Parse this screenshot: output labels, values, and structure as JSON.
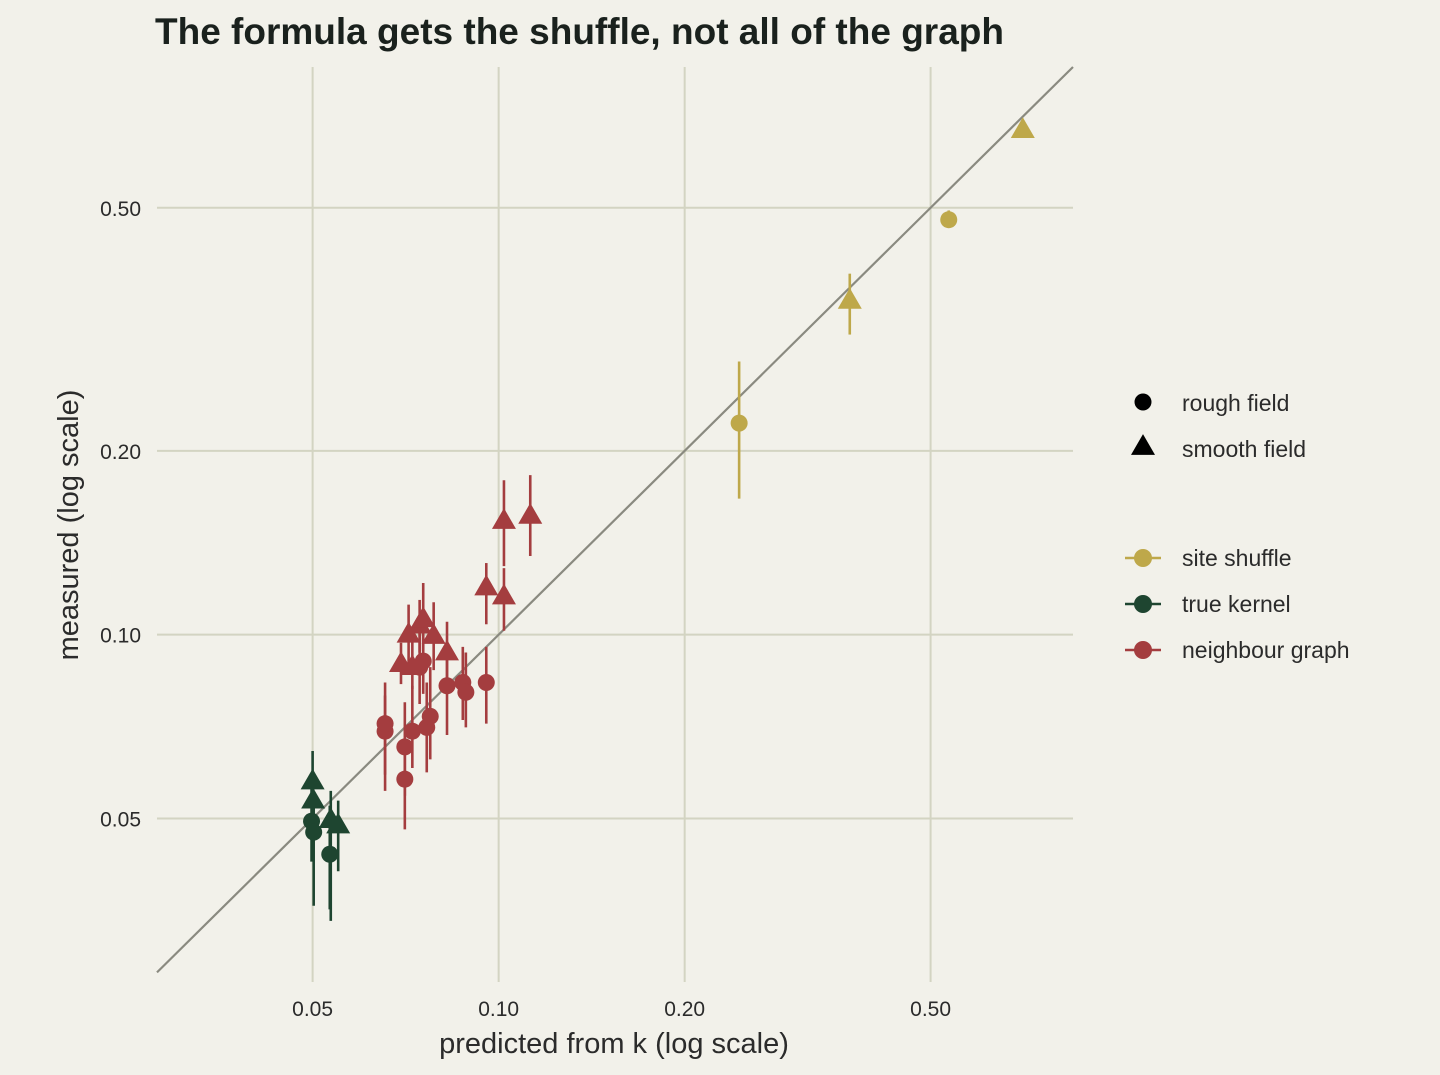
{
  "chart_data": {
    "type": "scatter",
    "title": "The formula gets the shuffle, not all of the graph",
    "xlabel": "predicted from k (log scale)",
    "ylabel": "measured (log scale)",
    "xscale": "log",
    "yscale": "log",
    "xlim": [
      0.028,
      0.85
    ],
    "ylim": [
      0.027,
      0.85
    ],
    "x_ticks": [
      0.05,
      0.1,
      0.2,
      0.5
    ],
    "x_tick_labels": [
      "0.05",
      "0.10",
      "0.20",
      "0.50"
    ],
    "y_ticks": [
      0.05,
      0.1,
      0.2,
      0.5
    ],
    "y_tick_labels": [
      "0.05",
      "0.10",
      "0.20",
      "0.50"
    ],
    "grid": true,
    "reference_line": "y = x",
    "legend_position": "right",
    "shape_legend": [
      {
        "label": "rough field",
        "shape": "circle"
      },
      {
        "label": "smooth field",
        "shape": "triangle"
      }
    ],
    "series": [
      {
        "name": "site shuffle",
        "color": "#bea84a",
        "points": [
          {
            "x": 0.245,
            "y": 0.222,
            "ylo": 0.167,
            "yhi": 0.28,
            "shape": "circle"
          },
          {
            "x": 0.535,
            "y": 0.478,
            "ylo": 0.465,
            "yhi": 0.495,
            "shape": "circle"
          },
          {
            "x": 0.37,
            "y": 0.352,
            "ylo": 0.31,
            "yhi": 0.39,
            "shape": "triangle"
          },
          {
            "x": 0.705,
            "y": 0.67,
            "ylo": 0.665,
            "yhi": 0.675,
            "shape": "triangle"
          }
        ]
      },
      {
        "name": "true kernel",
        "color": "#1e4530",
        "points": [
          {
            "x": 0.0498,
            "y": 0.0495,
            "ylo": 0.0425,
            "yhi": 0.0575,
            "shape": "circle"
          },
          {
            "x": 0.0502,
            "y": 0.0475,
            "ylo": 0.036,
            "yhi": 0.0545,
            "shape": "circle"
          },
          {
            "x": 0.0533,
            "y": 0.0437,
            "ylo": 0.0355,
            "yhi": 0.0525,
            "shape": "circle"
          },
          {
            "x": 0.05,
            "y": 0.0575,
            "ylo": 0.0525,
            "yhi": 0.0645,
            "shape": "triangle"
          },
          {
            "x": 0.0501,
            "y": 0.0535,
            "ylo": 0.0445,
            "yhi": 0.0585,
            "shape": "triangle"
          },
          {
            "x": 0.0535,
            "y": 0.0497,
            "ylo": 0.034,
            "yhi": 0.0555,
            "shape": "triangle"
          },
          {
            "x": 0.055,
            "y": 0.0487,
            "ylo": 0.041,
            "yhi": 0.0535,
            "shape": "triangle"
          }
        ]
      },
      {
        "name": "neighbour graph",
        "color": "#a43d3f",
        "points": [
          {
            "x": 0.0655,
            "y": 0.0695,
            "ylo": 0.0555,
            "yhi": 0.0795,
            "shape": "circle"
          },
          {
            "x": 0.0655,
            "y": 0.0715,
            "ylo": 0.059,
            "yhi": 0.0835,
            "shape": "circle"
          },
          {
            "x": 0.0705,
            "y": 0.0655,
            "ylo": 0.0545,
            "yhi": 0.0775,
            "shape": "circle"
          },
          {
            "x": 0.0725,
            "y": 0.0695,
            "ylo": 0.0605,
            "yhi": 0.0825,
            "shape": "circle"
          },
          {
            "x": 0.0705,
            "y": 0.058,
            "ylo": 0.048,
            "yhi": 0.0655,
            "shape": "circle"
          },
          {
            "x": 0.0765,
            "y": 0.0705,
            "ylo": 0.0595,
            "yhi": 0.0835,
            "shape": "circle"
          },
          {
            "x": 0.0775,
            "y": 0.0735,
            "ylo": 0.0625,
            "yhi": 0.0885,
            "shape": "circle"
          },
          {
            "x": 0.0745,
            "y": 0.0885,
            "ylo": 0.077,
            "yhi": 0.101,
            "shape": "circle"
          },
          {
            "x": 0.0755,
            "y": 0.0905,
            "ylo": 0.08,
            "yhi": 0.103,
            "shape": "circle"
          },
          {
            "x": 0.0825,
            "y": 0.0825,
            "ylo": 0.0685,
            "yhi": 0.0965,
            "shape": "circle"
          },
          {
            "x": 0.0875,
            "y": 0.0835,
            "ylo": 0.0725,
            "yhi": 0.0955,
            "shape": "circle"
          },
          {
            "x": 0.0885,
            "y": 0.0805,
            "ylo": 0.0705,
            "yhi": 0.0935,
            "shape": "circle"
          },
          {
            "x": 0.0955,
            "y": 0.0835,
            "ylo": 0.0715,
            "yhi": 0.0955,
            "shape": "circle"
          },
          {
            "x": 0.0695,
            "y": 0.0895,
            "ylo": 0.083,
            "yhi": 0.097,
            "shape": "triangle"
          },
          {
            "x": 0.0715,
            "y": 0.1,
            "ylo": 0.0885,
            "yhi": 0.112,
            "shape": "triangle"
          },
          {
            "x": 0.0725,
            "y": 0.0885,
            "ylo": 0.0815,
            "yhi": 0.1,
            "shape": "triangle"
          },
          {
            "x": 0.0745,
            "y": 0.1035,
            "ylo": 0.0935,
            "yhi": 0.114,
            "shape": "triangle"
          },
          {
            "x": 0.0755,
            "y": 0.106,
            "ylo": 0.094,
            "yhi": 0.1215,
            "shape": "triangle"
          },
          {
            "x": 0.0785,
            "y": 0.0995,
            "ylo": 0.0875,
            "yhi": 0.113,
            "shape": "triangle"
          },
          {
            "x": 0.0825,
            "y": 0.0935,
            "ylo": 0.0815,
            "yhi": 0.105,
            "shape": "triangle"
          },
          {
            "x": 0.0955,
            "y": 0.1195,
            "ylo": 0.104,
            "yhi": 0.131,
            "shape": "triangle"
          },
          {
            "x": 0.102,
            "y": 0.1155,
            "ylo": 0.1015,
            "yhi": 0.1285,
            "shape": "triangle"
          },
          {
            "x": 0.102,
            "y": 0.1535,
            "ylo": 0.1295,
            "yhi": 0.179,
            "shape": "triangle"
          },
          {
            "x": 0.1125,
            "y": 0.1565,
            "ylo": 0.1345,
            "yhi": 0.1825,
            "shape": "triangle"
          }
        ]
      }
    ]
  }
}
